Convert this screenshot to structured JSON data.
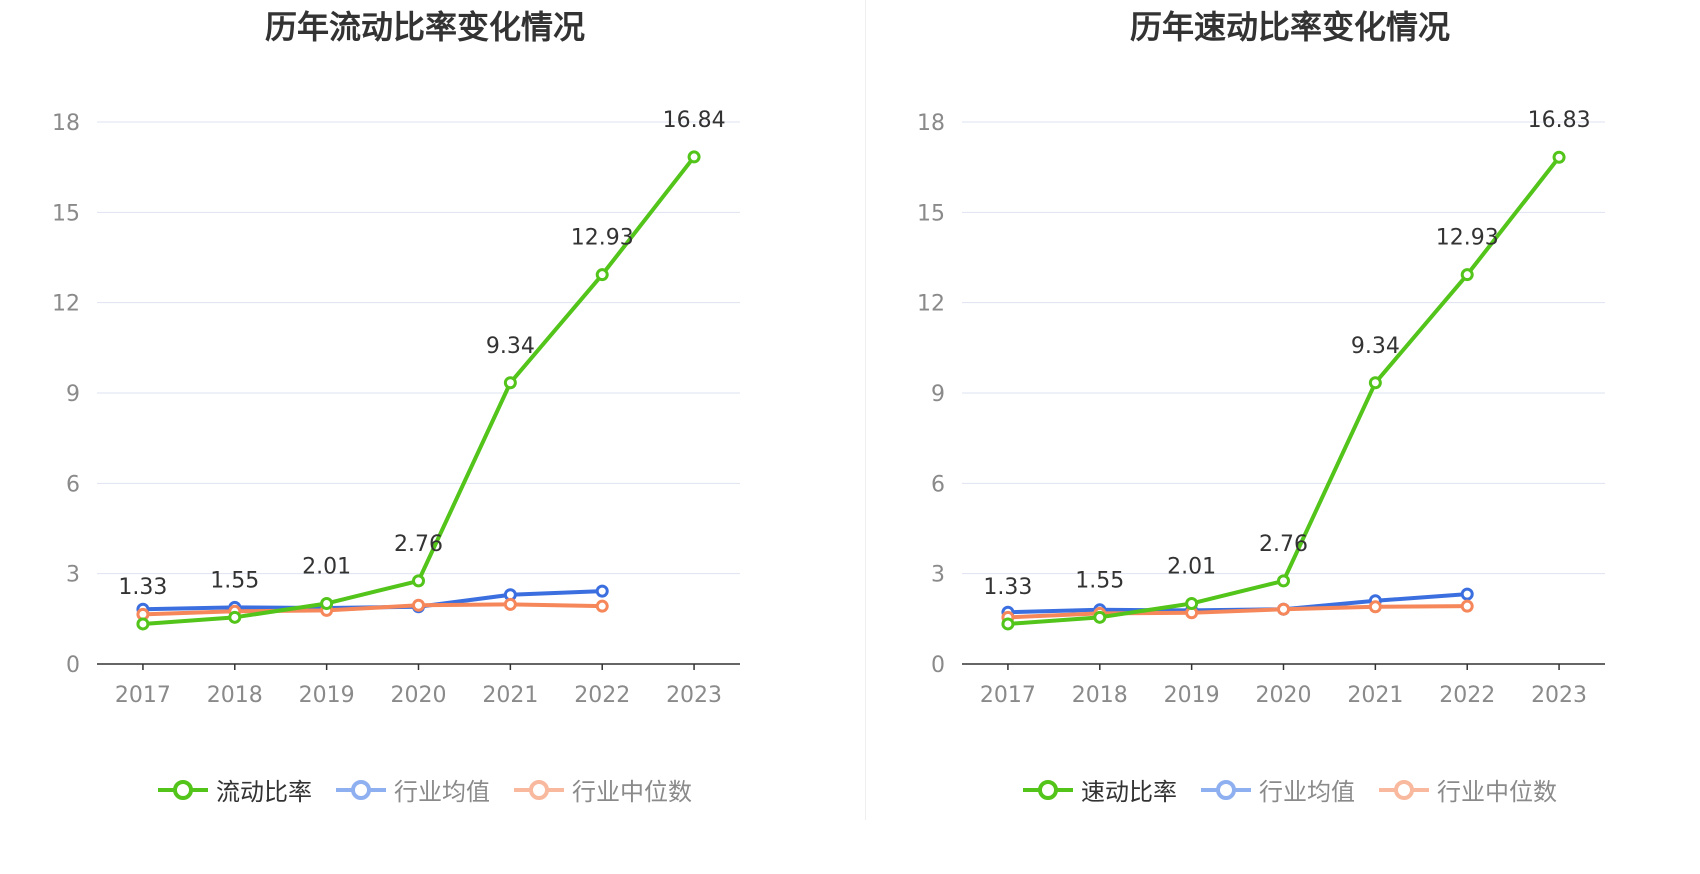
{
  "colors": {
    "main": "#52c41a",
    "avg": "#3b6fe0",
    "median": "#f5875a",
    "avg_legend": "#8fb0f0",
    "median_legend": "#f8b99e"
  },
  "chart_data": [
    {
      "type": "line",
      "title": "历年流动比率变化情况",
      "categories": [
        "2017",
        "2018",
        "2019",
        "2020",
        "2021",
        "2022",
        "2023"
      ],
      "ylim": [
        0,
        18
      ],
      "yticks": [
        "0",
        "3",
        "6",
        "9",
        "12",
        "15",
        "18"
      ],
      "series": [
        {
          "name": "流动比率",
          "values": [
            1.33,
            1.55,
            2.01,
            2.76,
            9.34,
            12.93,
            16.84
          ],
          "labels": [
            "1.33",
            "1.55",
            "2.01",
            "2.76",
            "9.34",
            "12.93",
            "16.84"
          ]
        },
        {
          "name": "行业均值",
          "values": [
            1.82,
            1.88,
            1.86,
            1.9,
            2.3,
            2.42,
            null
          ]
        },
        {
          "name": "行业中位数",
          "values": [
            1.65,
            1.75,
            1.78,
            1.95,
            1.98,
            1.92,
            null
          ]
        }
      ]
    },
    {
      "type": "line",
      "title": "历年速动比率变化情况",
      "categories": [
        "2017",
        "2018",
        "2019",
        "2020",
        "2021",
        "2022",
        "2023"
      ],
      "ylim": [
        0,
        18
      ],
      "yticks": [
        "0",
        "3",
        "6",
        "9",
        "12",
        "15",
        "18"
      ],
      "series": [
        {
          "name": "速动比率",
          "values": [
            1.33,
            1.55,
            2.01,
            2.76,
            9.34,
            12.93,
            16.83
          ],
          "labels": [
            "1.33",
            "1.55",
            "2.01",
            "2.76",
            "9.34",
            "12.93",
            "16.83"
          ]
        },
        {
          "name": "行业均值",
          "values": [
            1.72,
            1.8,
            1.78,
            1.82,
            2.1,
            2.32,
            null
          ]
        },
        {
          "name": "行业中位数",
          "values": [
            1.55,
            1.68,
            1.7,
            1.82,
            1.9,
            1.92,
            null
          ]
        }
      ]
    }
  ]
}
